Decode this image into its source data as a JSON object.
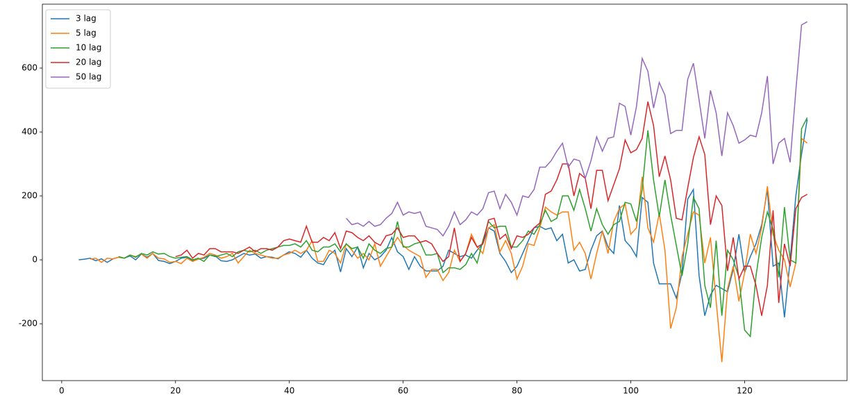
{
  "chart_data": {
    "type": "line",
    "x": [
      3,
      4,
      5,
      6,
      7,
      8,
      9,
      10,
      11,
      12,
      13,
      14,
      15,
      16,
      17,
      18,
      19,
      20,
      21,
      22,
      23,
      24,
      25,
      26,
      27,
      28,
      29,
      30,
      31,
      32,
      33,
      34,
      35,
      36,
      37,
      38,
      39,
      40,
      41,
      42,
      43,
      44,
      45,
      46,
      47,
      48,
      49,
      50,
      51,
      52,
      53,
      54,
      55,
      56,
      57,
      58,
      59,
      60,
      61,
      62,
      63,
      64,
      65,
      66,
      67,
      68,
      69,
      70,
      71,
      72,
      73,
      74,
      75,
      76,
      77,
      78,
      79,
      80,
      81,
      82,
      83,
      84,
      85,
      86,
      87,
      88,
      89,
      90,
      91,
      92,
      93,
      94,
      95,
      96,
      97,
      98,
      99,
      100,
      101,
      102,
      103,
      104,
      105,
      106,
      107,
      108,
      109,
      110,
      111,
      112,
      113,
      114,
      115,
      116,
      117,
      118,
      119,
      120,
      121,
      122,
      123,
      124,
      125,
      126,
      127,
      128,
      129,
      130,
      131
    ],
    "series": [
      {
        "name": "3 lag",
        "color": "#1f77b4",
        "values": [
          0,
          2,
          5,
          -3,
          3,
          -8,
          3,
          8,
          5,
          12,
          0,
          18,
          8,
          20,
          -2,
          -5,
          -12,
          -5,
          5,
          8,
          -3,
          2,
          5,
          15,
          12,
          -3,
          -5,
          0,
          10,
          20,
          15,
          18,
          5,
          10,
          8,
          3,
          15,
          25,
          20,
          8,
          30,
          5,
          -10,
          -15,
          15,
          30,
          -38,
          35,
          10,
          40,
          -25,
          20,
          0,
          10,
          30,
          70,
          25,
          10,
          -30,
          10,
          -20,
          -35,
          -35,
          -35,
          -20,
          30,
          20,
          10,
          15,
          5,
          30,
          50,
          100,
          90,
          20,
          -5,
          -40,
          -20,
          20,
          60,
          100,
          105,
          95,
          100,
          60,
          80,
          -10,
          0,
          -35,
          -30,
          30,
          75,
          90,
          40,
          20,
          170,
          60,
          40,
          10,
          195,
          180,
          -10,
          -75,
          -75,
          -75,
          -120,
          -40,
          190,
          220,
          -50,
          -175,
          -110,
          -80,
          -90,
          -100,
          -30,
          80,
          -40,
          10,
          50,
          110,
          220,
          -20,
          -10,
          -180,
          0,
          200,
          330,
          440
        ]
      },
      {
        "name": "5 lag",
        "color": "#ff7f0e",
        "values": [
          null,
          null,
          2,
          5,
          -8,
          5,
          3,
          8,
          5,
          15,
          10,
          18,
          5,
          20,
          5,
          3,
          -8,
          -5,
          -12,
          5,
          -5,
          2,
          8,
          20,
          15,
          5,
          10,
          20,
          -10,
          10,
          30,
          20,
          15,
          10,
          5,
          5,
          15,
          20,
          30,
          20,
          30,
          60,
          -5,
          -5,
          30,
          20,
          -10,
          50,
          30,
          5,
          20,
          0,
          50,
          -20,
          10,
          40,
          70,
          45,
          30,
          20,
          10,
          -55,
          -30,
          -30,
          -65,
          -40,
          30,
          -5,
          20,
          80,
          40,
          20,
          100,
          110,
          25,
          60,
          20,
          -60,
          -20,
          50,
          45,
          100,
          165,
          150,
          140,
          150,
          150,
          30,
          55,
          20,
          -60,
          20,
          90,
          20,
          120,
          160,
          175,
          80,
          100,
          260,
          100,
          55,
          145,
          30,
          -215,
          -150,
          10,
          80,
          150,
          140,
          -10,
          70,
          -130,
          -320,
          -90,
          -20,
          -130,
          -40,
          80,
          20,
          100,
          230,
          80,
          30,
          0,
          -85,
          -10,
          380,
          365
        ]
      },
      {
        "name": "10 lag",
        "color": "#2ca02c",
        "values": [
          null,
          null,
          null,
          null,
          null,
          null,
          null,
          10,
          5,
          15,
          8,
          20,
          15,
          25,
          18,
          20,
          10,
          5,
          8,
          10,
          0,
          5,
          -5,
          15,
          10,
          15,
          20,
          10,
          25,
          30,
          25,
          30,
          20,
          30,
          35,
          40,
          45,
          45,
          50,
          40,
          60,
          30,
          25,
          40,
          40,
          50,
          25,
          50,
          35,
          40,
          5,
          50,
          30,
          20,
          35,
          40,
          120,
          40,
          40,
          50,
          55,
          15,
          15,
          20,
          -40,
          -25,
          -25,
          -30,
          -15,
          20,
          -10,
          60,
          120,
          100,
          105,
          105,
          40,
          40,
          60,
          90,
          80,
          110,
          155,
          120,
          130,
          200,
          200,
          155,
          220,
          160,
          90,
          160,
          110,
          80,
          110,
          120,
          180,
          175,
          120,
          220,
          405,
          250,
          135,
          250,
          140,
          45,
          -50,
          50,
          195,
          160,
          -80,
          -150,
          60,
          -175,
          30,
          0,
          -55,
          -220,
          -240,
          -50,
          70,
          150,
          95,
          -55,
          165,
          0,
          -10,
          410,
          445
        ]
      },
      {
        "name": "20 lag",
        "color": "#d62728",
        "values": [
          null,
          null,
          null,
          null,
          null,
          null,
          null,
          null,
          null,
          null,
          null,
          null,
          null,
          null,
          null,
          null,
          null,
          10,
          15,
          30,
          5,
          20,
          15,
          35,
          35,
          25,
          25,
          25,
          20,
          30,
          40,
          25,
          35,
          35,
          30,
          40,
          60,
          65,
          60,
          55,
          105,
          55,
          55,
          70,
          60,
          85,
          35,
          90,
          85,
          70,
          60,
          75,
          55,
          45,
          75,
          80,
          100,
          70,
          75,
          75,
          55,
          60,
          50,
          20,
          -5,
          10,
          100,
          -5,
          20,
          70,
          40,
          50,
          125,
          130,
          65,
          80,
          35,
          75,
          70,
          80,
          100,
          115,
          205,
          215,
          250,
          300,
          300,
          200,
          270,
          255,
          160,
          280,
          280,
          185,
          235,
          285,
          375,
          335,
          345,
          380,
          495,
          420,
          260,
          325,
          250,
          130,
          125,
          225,
          320,
          385,
          330,
          110,
          200,
          170,
          -35,
          70,
          -60,
          -20,
          -20,
          -80,
          -175,
          -80,
          155,
          -135,
          50,
          -20,
          160,
          195,
          205
        ]
      },
      {
        "name": "50 lag",
        "color": "#9467bd",
        "values": [
          null,
          null,
          null,
          null,
          null,
          null,
          null,
          null,
          null,
          null,
          null,
          null,
          null,
          null,
          null,
          null,
          null,
          null,
          null,
          null,
          null,
          null,
          null,
          null,
          null,
          null,
          null,
          null,
          null,
          null,
          null,
          null,
          null,
          null,
          null,
          null,
          null,
          null,
          null,
          null,
          null,
          null,
          null,
          null,
          null,
          null,
          null,
          130,
          110,
          115,
          105,
          120,
          105,
          110,
          130,
          145,
          180,
          140,
          150,
          145,
          150,
          105,
          100,
          95,
          75,
          105,
          150,
          110,
          125,
          150,
          140,
          160,
          210,
          215,
          160,
          205,
          180,
          140,
          200,
          195,
          220,
          290,
          290,
          310,
          340,
          365,
          290,
          315,
          310,
          255,
          310,
          385,
          340,
          380,
          385,
          490,
          480,
          390,
          480,
          630,
          590,
          475,
          555,
          515,
          395,
          405,
          405,
          565,
          615,
          500,
          380,
          530,
          460,
          325,
          460,
          420,
          365,
          375,
          390,
          385,
          460,
          575,
          300,
          365,
          380,
          305,
          530,
          735,
          745
        ]
      }
    ],
    "xlim": [
      -3.4,
      138
    ],
    "ylim": [
      -378,
      800
    ],
    "xticks": [
      0,
      20,
      40,
      60,
      80,
      100,
      120
    ],
    "yticks": [
      -200,
      0,
      200,
      400,
      600
    ],
    "legend": "upper left"
  }
}
